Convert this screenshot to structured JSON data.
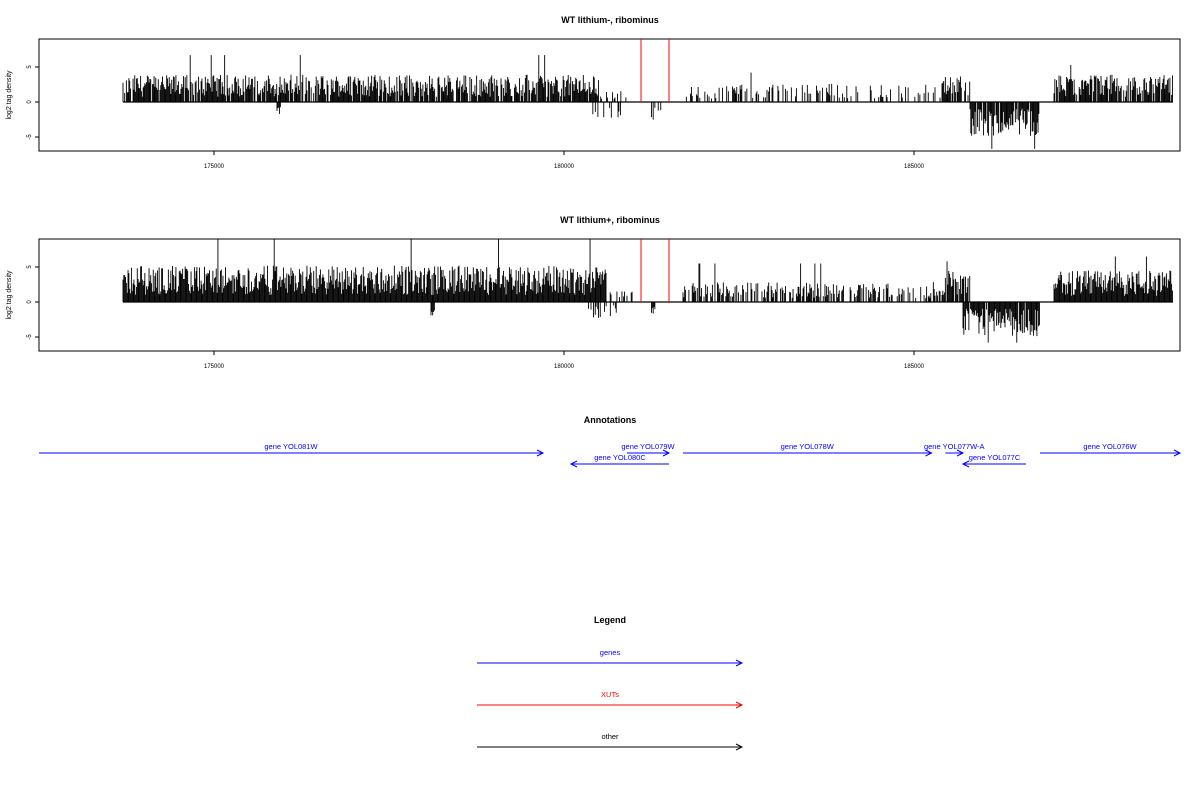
{
  "colors": {
    "genes": "#0000ff",
    "xuts": "#ff0000",
    "other": "#000000",
    "axis": "#000000"
  },
  "chart_data": [
    {
      "type": "bar",
      "title": "WT lithium-, ribominus",
      "ylabel": "log2 tag density",
      "xlim": [
        172500,
        188800
      ],
      "ylim": [
        -7,
        9
      ],
      "x_ticks": [
        175000,
        180000,
        185000
      ],
      "x_tick_labels": [
        "175000",
        "180000",
        "185000"
      ],
      "y_ticks": [
        -5,
        0,
        5
      ],
      "y_tick_labels": [
        "-5",
        "0",
        "5"
      ],
      "baseline_range": [
        173700,
        188700
      ],
      "density_profile": {
        "positive": [
          {
            "from": 173700,
            "to": 180500,
            "typical": 3.0,
            "max": 6.7,
            "density": 0.85
          },
          {
            "from": 180500,
            "to": 181000,
            "typical": 1.2,
            "max": 2.0,
            "density": 0.15
          },
          {
            "from": 181700,
            "to": 185400,
            "typical": 2.0,
            "max": 4.2,
            "density": 0.35
          },
          {
            "from": 185400,
            "to": 185800,
            "typical": 2.8,
            "max": 5.2,
            "density": 0.8
          },
          {
            "from": 187000,
            "to": 188700,
            "typical": 3.0,
            "max": 5.3,
            "density": 0.9
          }
        ],
        "negative": [
          {
            "from": 175900,
            "to": 175950,
            "typical": -1.5,
            "max": -1.7,
            "density": 1.0
          },
          {
            "from": 180400,
            "to": 180850,
            "typical": -1.8,
            "max": -3.0,
            "density": 0.3
          },
          {
            "from": 181250,
            "to": 181450,
            "typical": -2.0,
            "max": -3.0,
            "density": 0.3
          },
          {
            "from": 185800,
            "to": 186800,
            "typical": -3.8,
            "max": -6.7,
            "density": 0.95
          }
        ]
      },
      "xut_markers": [
        {
          "x": 181100,
          "top": 9.0
        },
        {
          "x": 181500,
          "top": 9.0
        }
      ]
    },
    {
      "type": "bar",
      "title": "WT lithium+, ribominus",
      "ylabel": "log2 tag density",
      "xlim": [
        172500,
        188800
      ],
      "ylim": [
        -7,
        9
      ],
      "x_ticks": [
        175000,
        180000,
        185000
      ],
      "x_tick_labels": [
        "175000",
        "180000",
        "185000"
      ],
      "y_ticks": [
        -5,
        0,
        5
      ],
      "y_tick_labels": [
        "-5",
        "0",
        "5"
      ],
      "baseline_range": [
        173700,
        188700
      ],
      "density_profile": {
        "positive": [
          {
            "from": 173700,
            "to": 180600,
            "typical": 4.0,
            "max": 9.0,
            "density": 1.0
          },
          {
            "from": 180600,
            "to": 181000,
            "typical": 1.2,
            "max": 2.5,
            "density": 0.2
          },
          {
            "from": 181700,
            "to": 185400,
            "typical": 2.2,
            "max": 5.5,
            "density": 0.55
          },
          {
            "from": 185400,
            "to": 185800,
            "typical": 3.5,
            "max": 5.8,
            "density": 0.9
          },
          {
            "from": 187000,
            "to": 188700,
            "typical": 3.5,
            "max": 6.5,
            "density": 1.0
          }
        ],
        "negative": [
          {
            "from": 178100,
            "to": 178150,
            "typical": -1.8,
            "max": -2.0,
            "density": 1.0
          },
          {
            "from": 180350,
            "to": 180800,
            "typical": -1.8,
            "max": -2.5,
            "density": 0.3
          },
          {
            "from": 181250,
            "to": 181300,
            "typical": -1.8,
            "max": -2.0,
            "density": 1.0
          },
          {
            "from": 185700,
            "to": 186800,
            "typical": -3.8,
            "max": -5.8,
            "density": 0.95
          }
        ]
      },
      "xut_markers": [
        {
          "x": 181100,
          "top": 9.0
        },
        {
          "x": 181500,
          "top": 9.0
        }
      ]
    }
  ],
  "annotations": {
    "title": "Annotations",
    "xlim": [
      172500,
      188800
    ],
    "features": [
      {
        "label": "gene YOL081W",
        "start": 172500,
        "end": 179700,
        "strand": "+",
        "row": 0,
        "category": "genes"
      },
      {
        "label": "gene YOL079W",
        "start": 180900,
        "end": 181500,
        "strand": "+",
        "row": 0,
        "category": "genes"
      },
      {
        "label": "gene YOL080C",
        "start": 180100,
        "end": 181500,
        "strand": "-",
        "row": 1,
        "category": "genes"
      },
      {
        "label": "gene YOL078W",
        "start": 181700,
        "end": 185250,
        "strand": "+",
        "row": 0,
        "category": "genes"
      },
      {
        "label": "gene YOL077W-A",
        "start": 185450,
        "end": 185700,
        "strand": "+",
        "row": 0,
        "category": "genes"
      },
      {
        "label": "gene YOL077C",
        "start": 185700,
        "end": 186600,
        "strand": "-",
        "row": 1,
        "category": "genes"
      },
      {
        "label": "gene YOL076W",
        "start": 186800,
        "end": 188800,
        "strand": "+",
        "row": 0,
        "category": "genes"
      }
    ]
  },
  "legend": {
    "title": "Legend",
    "entries": [
      {
        "label": "genes",
        "color": "#0000ff"
      },
      {
        "label": "XUTs",
        "color": "#ff0000"
      },
      {
        "label": "other",
        "color": "#000000"
      }
    ]
  }
}
